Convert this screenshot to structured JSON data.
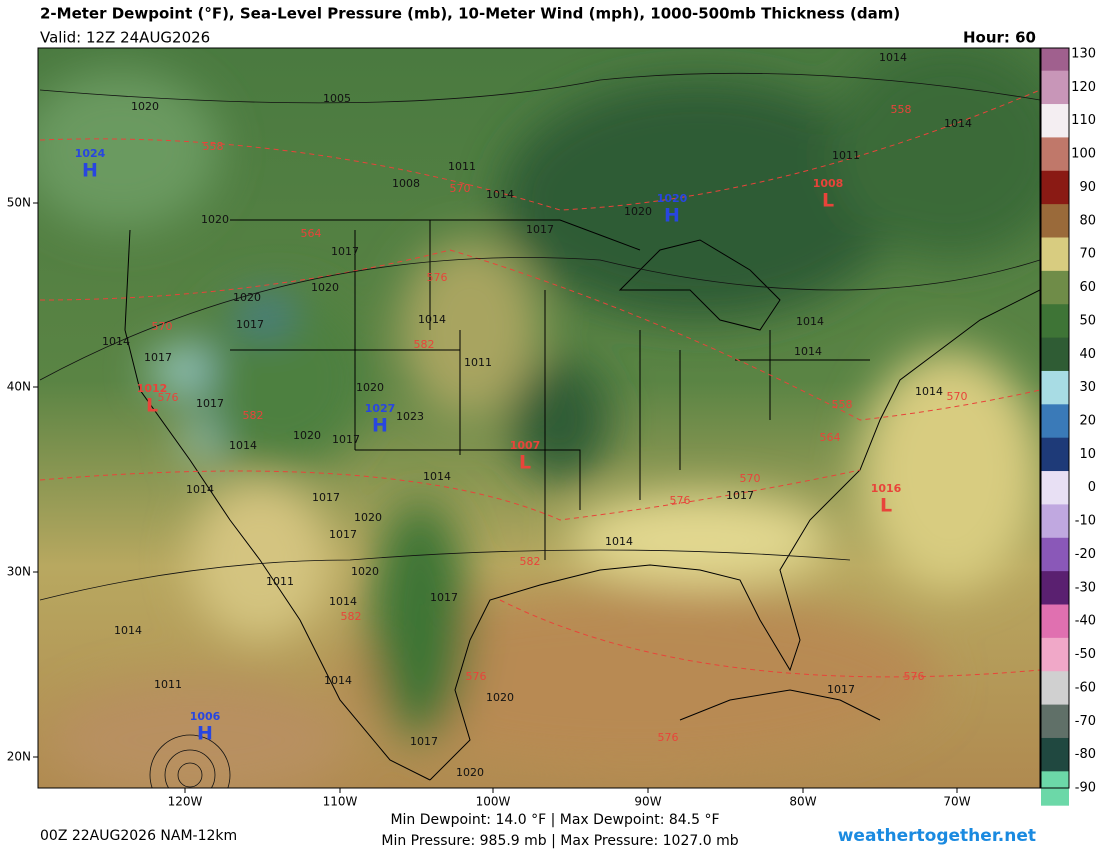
{
  "header": {
    "title": "2-Meter Dewpoint (°F), Sea-Level Pressure (mb), 10-Meter Wind (mph), 1000-500mb Thickness (dam)",
    "valid": "Valid: 12Z 24AUG2026",
    "hour": "Hour: 60"
  },
  "colorbar": {
    "ticks": [
      130,
      120,
      110,
      100,
      90,
      80,
      70,
      60,
      50,
      40,
      30,
      20,
      10,
      0,
      -10,
      -20,
      -30,
      -40,
      -50,
      -60,
      -70,
      -80,
      -90
    ],
    "colors": [
      "#a0608e",
      "#c896b8",
      "#f4eef2",
      "#c0786a",
      "#8a1a14",
      "#9a6a3a",
      "#d8cc80",
      "#6f8c48",
      "#3e7436",
      "#2f5c34",
      "#a8dce4",
      "#3a7ab8",
      "#1e3a78",
      "#e8e0f4",
      "#c0a8e0",
      "#8a58b8",
      "#5a2070",
      "#e070b0",
      "#f0a8c8",
      "#d0d0d0",
      "#607068",
      "#204840",
      "#6cd8a8"
    ]
  },
  "axes": {
    "lat": [
      "50N",
      "40N",
      "30N",
      "20N"
    ],
    "lon": [
      "120W",
      "110W",
      "100W",
      "90W",
      "80W",
      "70W"
    ]
  },
  "pressure_centers": [
    {
      "letter": "H",
      "value": "1024"
    },
    {
      "letter": "H",
      "value": "1020"
    },
    {
      "letter": "L",
      "value": "1008"
    },
    {
      "letter": "L",
      "value": "1012"
    },
    {
      "letter": "H",
      "value": "1027"
    },
    {
      "letter": "L",
      "value": "1007"
    },
    {
      "letter": "L",
      "value": "1016"
    },
    {
      "letter": "H",
      "value": "1006"
    }
  ],
  "isobar_labels": [
    "1020",
    "1005",
    "1011",
    "1008",
    "1014",
    "1020",
    "1017",
    "1020",
    "1020",
    "1017",
    "1014",
    "1014",
    "1017",
    "1011",
    "1020",
    "1017",
    "1023",
    "1014",
    "1020",
    "1017",
    "1014",
    "1017",
    "1014",
    "1020",
    "1017",
    "1014",
    "1020",
    "1017",
    "1014",
    "1011",
    "1014",
    "1011",
    "1014",
    "1020",
    "1017",
    "1020",
    "1017",
    "1017",
    "1020",
    "1011",
    "1014",
    "1014",
    "1014",
    "1014",
    "1017",
    "1014"
  ],
  "thickness_labels": [
    "558",
    "570",
    "564",
    "576",
    "570",
    "582",
    "582",
    "576",
    "558",
    "558",
    "564",
    "570",
    "576",
    "582",
    "582",
    "576",
    "576",
    "576",
    "570"
  ],
  "footer": {
    "run": "00Z 22AUG2026 NAM-12km",
    "dewpoint": "Min Dewpoint:  14.0 °F | Max Dewpoint:  84.5 °F",
    "pressure": "Min Pressure: 985.9 mb | Max Pressure: 1027.0 mb",
    "site": "weathertogether.net"
  }
}
